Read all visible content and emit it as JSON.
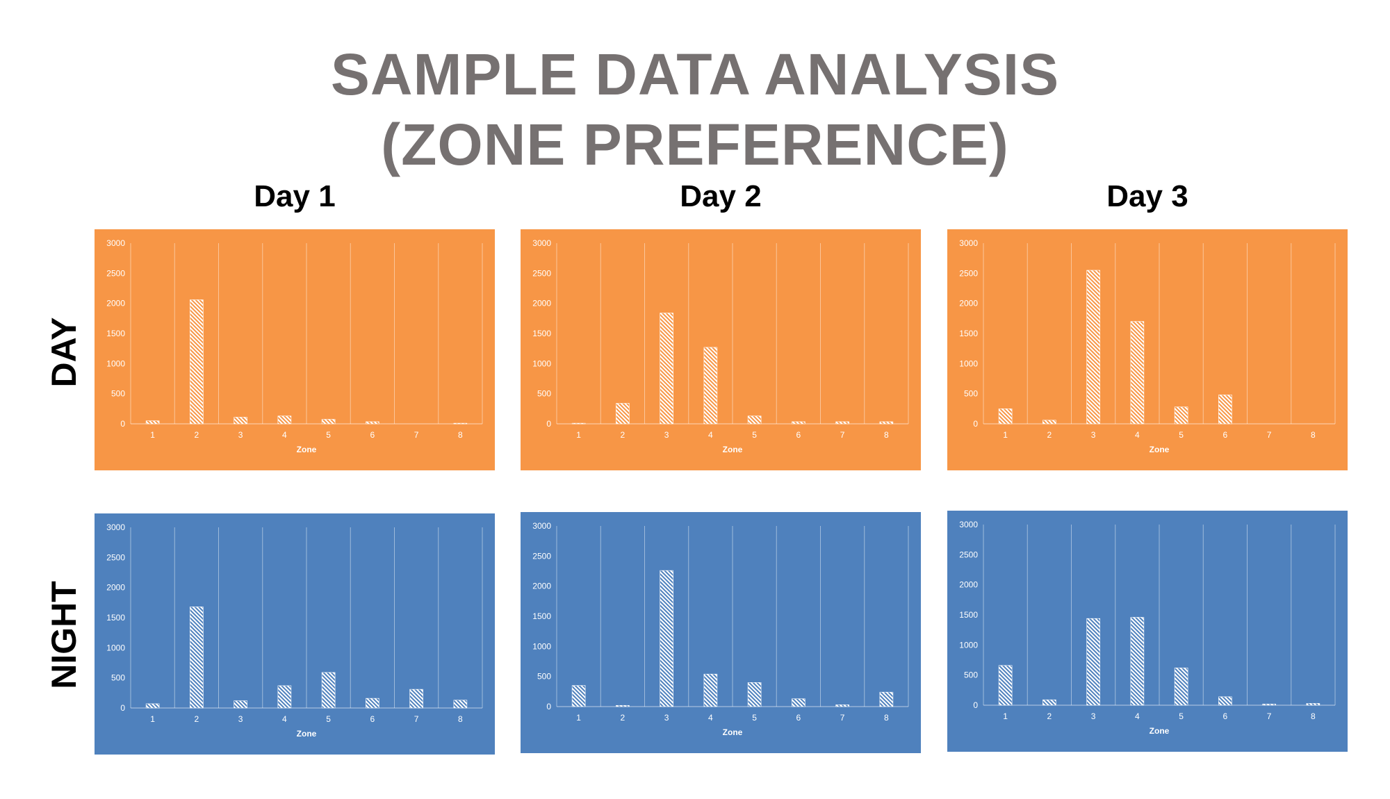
{
  "title": {
    "line1": "SAMPLE DATA ANALYSIS",
    "line2": "(ZONE PREFERENCE)"
  },
  "columns": [
    "Day 1",
    "Day 2",
    "Day 3"
  ],
  "rows": [
    "DAY",
    "NIGHT"
  ],
  "colors": {
    "day_panel": "#F79646",
    "night_panel": "#4F81BD",
    "bars": "#FFFFFF",
    "title": "#767171"
  },
  "chart_data": [
    {
      "type": "bar",
      "panel": "DAY / Day 1",
      "categories": [
        "1",
        "2",
        "3",
        "4",
        "5",
        "6",
        "7",
        "8"
      ],
      "values": [
        50,
        2060,
        110,
        130,
        75,
        35,
        0,
        10
      ],
      "xlabel": "Zone",
      "ylabel": "",
      "ylim": [
        0,
        3000
      ],
      "yticks": [
        0,
        500,
        1000,
        1500,
        2000,
        2500,
        3000
      ],
      "bar_fill": "hatched white",
      "grid": "vertical"
    },
    {
      "type": "bar",
      "panel": "DAY / Day 2",
      "categories": [
        "1",
        "2",
        "3",
        "4",
        "5",
        "6",
        "7",
        "8"
      ],
      "values": [
        10,
        340,
        1840,
        1270,
        130,
        35,
        35,
        35
      ],
      "xlabel": "Zone",
      "ylabel": "",
      "ylim": [
        0,
        3000
      ],
      "yticks": [
        0,
        500,
        1000,
        1500,
        2000,
        2500,
        3000
      ],
      "bar_fill": "hatched white",
      "grid": "vertical"
    },
    {
      "type": "bar",
      "panel": "DAY / Day 3",
      "categories": [
        "1",
        "2",
        "3",
        "4",
        "5",
        "6",
        "7",
        "8"
      ],
      "values": [
        250,
        60,
        2550,
        1700,
        280,
        480,
        0,
        0
      ],
      "xlabel": "Zone",
      "ylabel": "",
      "ylim": [
        0,
        3000
      ],
      "yticks": [
        0,
        500,
        1000,
        1500,
        2000,
        2500,
        3000
      ],
      "bar_fill": "hatched white",
      "grid": "vertical"
    },
    {
      "type": "bar",
      "panel": "NIGHT / Day 1",
      "categories": [
        "1",
        "2",
        "3",
        "4",
        "5",
        "6",
        "7",
        "8"
      ],
      "values": [
        70,
        1680,
        120,
        370,
        590,
        160,
        310,
        130
      ],
      "xlabel": "Zone",
      "ylabel": "",
      "ylim": [
        0,
        3000
      ],
      "yticks": [
        0,
        500,
        1000,
        1500,
        2000,
        2500,
        3000
      ],
      "bar_fill": "hatched white",
      "grid": "vertical"
    },
    {
      "type": "bar",
      "panel": "NIGHT / Day 2",
      "categories": [
        "1",
        "2",
        "3",
        "4",
        "5",
        "6",
        "7",
        "8"
      ],
      "values": [
        350,
        20,
        2260,
        540,
        400,
        130,
        30,
        240
      ],
      "xlabel": "Zone",
      "ylabel": "",
      "ylim": [
        0,
        3000
      ],
      "yticks": [
        0,
        500,
        1000,
        1500,
        2000,
        2500,
        3000
      ],
      "bar_fill": "hatched white",
      "grid": "vertical"
    },
    {
      "type": "bar",
      "panel": "NIGHT / Day 3",
      "categories": [
        "1",
        "2",
        "3",
        "4",
        "5",
        "6",
        "7",
        "8"
      ],
      "values": [
        660,
        90,
        1440,
        1460,
        620,
        140,
        20,
        30
      ],
      "xlabel": "Zone",
      "ylabel": "",
      "ylim": [
        0,
        3000
      ],
      "yticks": [
        0,
        500,
        1000,
        1500,
        2000,
        2500,
        3000
      ],
      "bar_fill": "hatched white",
      "grid": "vertical"
    }
  ]
}
